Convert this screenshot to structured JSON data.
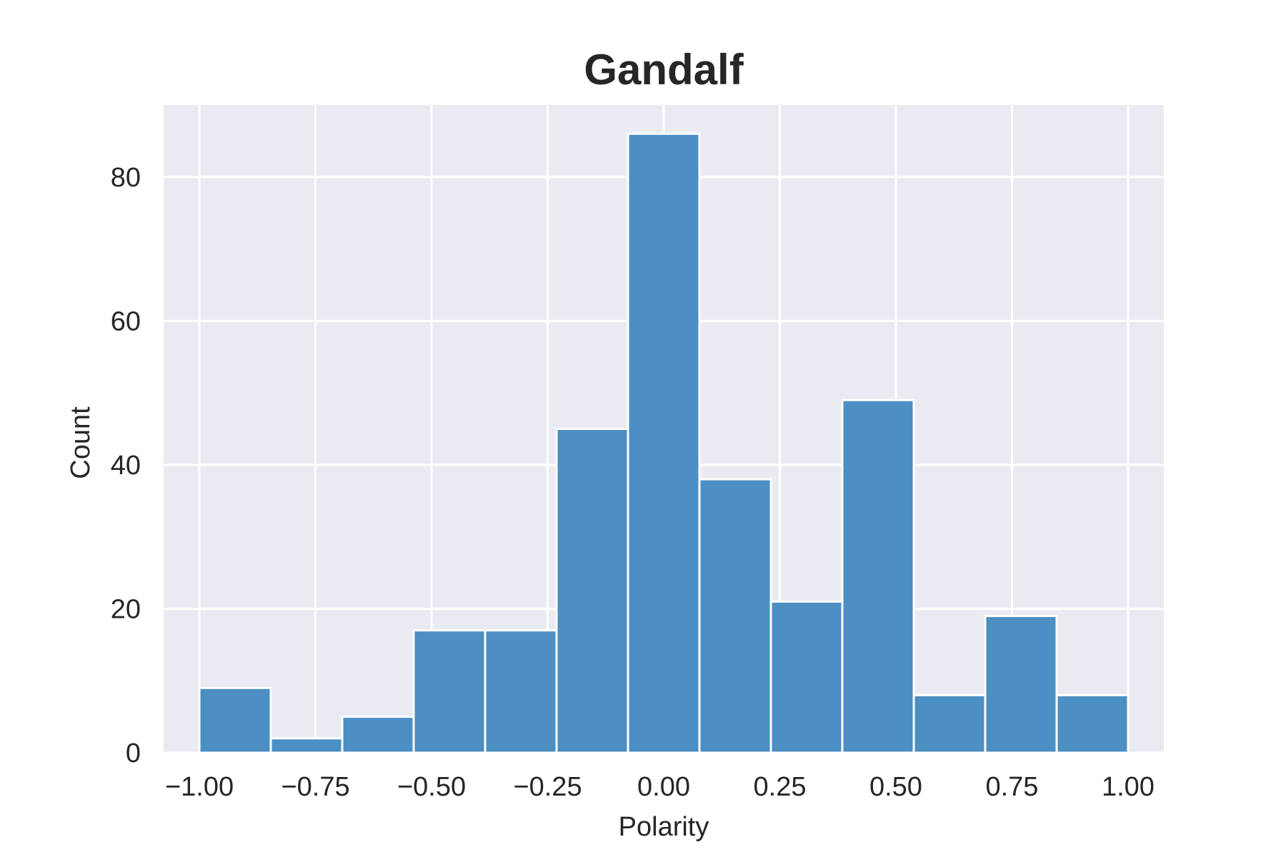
{
  "chart_data": {
    "type": "bar",
    "title": "Gandalf",
    "xlabel": "Polarity",
    "ylabel": "Count",
    "xlim": [
      -1.077,
      1.077
    ],
    "ylim": [
      0,
      90
    ],
    "x_ticks": [
      -1.0,
      -0.75,
      -0.5,
      -0.25,
      0.0,
      0.25,
      0.5,
      0.75,
      1.0
    ],
    "x_tick_labels": [
      "−1.00",
      "−0.75",
      "−0.50",
      "−0.25",
      "0.00",
      "0.25",
      "0.50",
      "0.75",
      "1.00"
    ],
    "y_ticks": [
      0,
      20,
      40,
      60,
      80
    ],
    "y_tick_labels": [
      "0",
      "20",
      "40",
      "60",
      "80"
    ],
    "bin_edges": [
      -1.0,
      -0.8462,
      -0.6923,
      -0.5385,
      -0.3846,
      -0.2308,
      -0.0769,
      0.0769,
      0.2308,
      0.3846,
      0.5385,
      0.6923,
      0.8462,
      1.0
    ],
    "values": [
      9,
      2,
      5,
      17,
      17,
      45,
      86,
      38,
      21,
      49,
      8,
      19,
      8
    ],
    "grid": true,
    "colors": {
      "bar": "#4c8fc3",
      "background": "#eaeaf2",
      "grid": "#ffffff",
      "text": "#262626"
    }
  }
}
